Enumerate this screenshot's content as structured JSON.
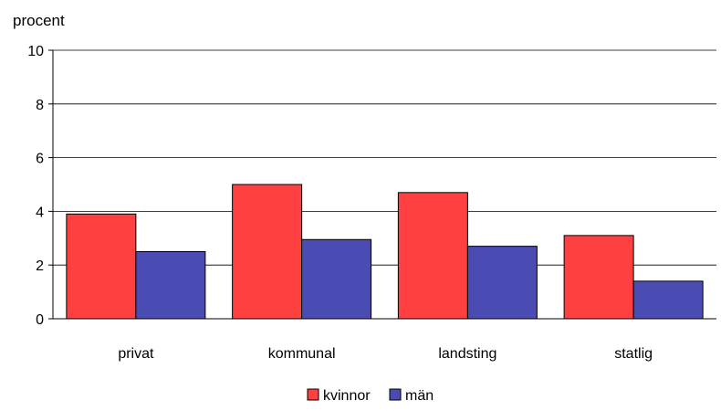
{
  "chart_data": {
    "type": "bar",
    "ylabel": "procent",
    "xlabel": "",
    "categories": [
      "privat",
      "kommunal",
      "landsting",
      "statlig"
    ],
    "series": [
      {
        "name": "kvinnor",
        "values": [
          3.9,
          5.0,
          4.7,
          3.1
        ],
        "color": "#ff4040"
      },
      {
        "name": "män",
        "values": [
          2.5,
          2.95,
          2.7,
          1.4
        ],
        "color": "#4b4bb4"
      }
    ],
    "ylim": [
      0,
      10
    ],
    "yticks": [
      0,
      2,
      4,
      6,
      8,
      10
    ],
    "grid": true,
    "legend": "bottom-center"
  }
}
